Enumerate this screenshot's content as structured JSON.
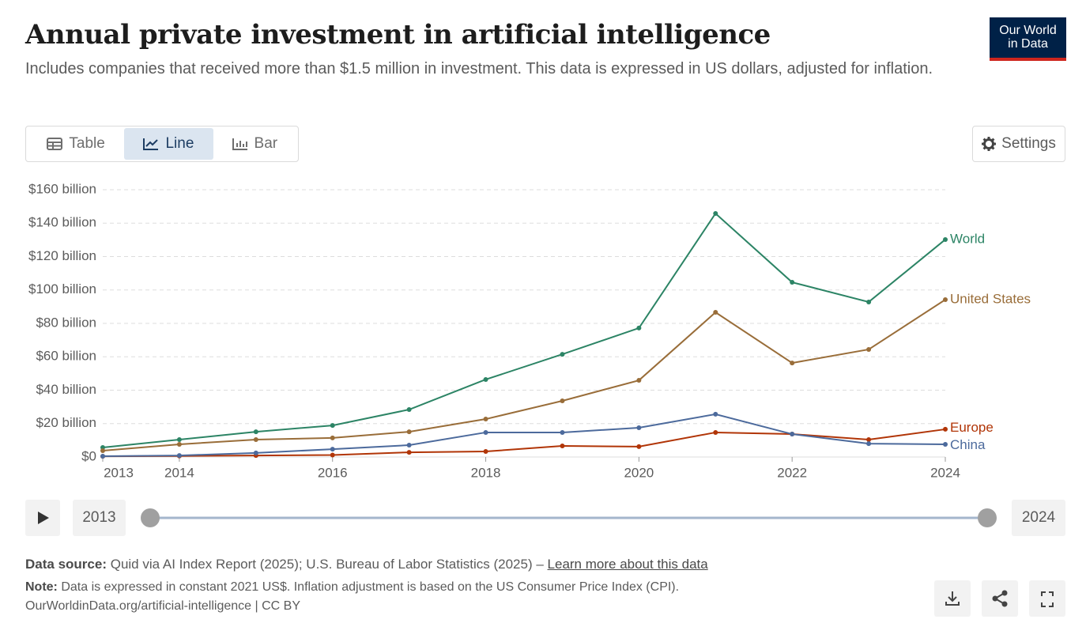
{
  "chart_data": {
    "type": "line",
    "title": "Annual private investment in artificial intelligence",
    "subtitle": "Includes companies that received more than $1.5 million in investment. This data is expressed in US dollars, adjusted for inflation.",
    "x": [
      2013,
      2014,
      2015,
      2016,
      2017,
      2018,
      2019,
      2020,
      2021,
      2022,
      2023,
      2024
    ],
    "series": [
      {
        "name": "World",
        "color": "#2c8465",
        "values": [
          5.7,
          10.4,
          15.1,
          18.9,
          28.4,
          46.4,
          61.5,
          77.2,
          145.8,
          104.6,
          92.8,
          130.2
        ]
      },
      {
        "name": "United States",
        "color": "#996d39",
        "values": [
          3.8,
          7.6,
          10.4,
          11.4,
          15.1,
          22.7,
          33.6,
          45.9,
          86.6,
          56.3,
          64.4,
          94.2
        ]
      },
      {
        "name": "Europe",
        "color": "#b13507",
        "values": [
          0.4,
          0.6,
          0.9,
          1.2,
          2.8,
          3.3,
          6.6,
          6.2,
          14.7,
          13.7,
          10.4,
          16.6
        ]
      },
      {
        "name": "China",
        "color": "#4c6a9c",
        "values": [
          0.5,
          0.9,
          2.4,
          4.7,
          7.1,
          14.7,
          14.7,
          17.5,
          25.6,
          13.7,
          8.0,
          7.6
        ]
      }
    ],
    "xlim": [
      2013,
      2024
    ],
    "xticks": [
      2013,
      2014,
      2016,
      2018,
      2020,
      2022,
      2024
    ],
    "ylim": [
      0,
      160
    ],
    "yticks": [
      {
        "value": 0,
        "label": "$0"
      },
      {
        "value": 20,
        "label": "$20 billion"
      },
      {
        "value": 40,
        "label": "$40 billion"
      },
      {
        "value": 60,
        "label": "$60 billion"
      },
      {
        "value": 80,
        "label": "$80 billion"
      },
      {
        "value": 100,
        "label": "$100 billion"
      },
      {
        "value": 120,
        "label": "$120 billion"
      },
      {
        "value": 140,
        "label": "$140 billion"
      },
      {
        "value": 160,
        "label": "$160 billion"
      }
    ],
    "grid": true
  },
  "logo": [
    "Our World",
    "in Data"
  ],
  "tabs": [
    "Table",
    "Line",
    "Bar"
  ],
  "active_tab": 1,
  "settings": "Settings",
  "timeline": {
    "start": 2013,
    "end": 2024
  },
  "footer": {
    "source_label": "Data source:",
    "source": "Quid via AI Index Report (2025); U.S. Bureau of Labor Statistics (2025) –",
    "link": "Learn more about this data",
    "note_label": "Note:",
    "note": "Data is expressed in constant 2021 US$. Inflation adjustment is based on the US Consumer Price Index (CPI).",
    "url": "OurWorldinData.org/artificial-intelligence | CC BY"
  }
}
